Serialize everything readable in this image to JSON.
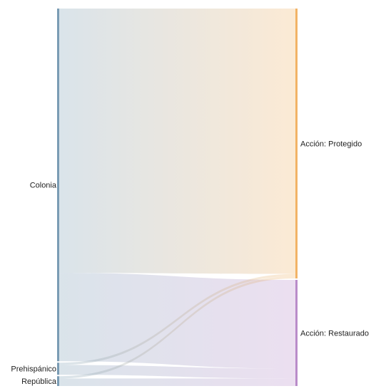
{
  "chart_data": {
    "type": "sankey",
    "title": "",
    "sources": [
      {
        "name": "Colonia",
        "color": "#7a9cb4"
      },
      {
        "name": "Prehispánico",
        "color": "#7a9cb4"
      },
      {
        "name": "República",
        "color": "#7a9cb4"
      }
    ],
    "targets": [
      {
        "name": "Acción: Protegido",
        "color": "#f2b366"
      },
      {
        "name": "Acción: Restaurado",
        "color": "#b98cc9"
      }
    ],
    "links": [
      {
        "source": "Colonia",
        "target": "Acción: Protegido",
        "value": 350
      },
      {
        "source": "Colonia",
        "target": "Acción: Restaurado",
        "value": 117
      },
      {
        "source": "Prehispánico",
        "target": "Acción: Protegido",
        "value": 3
      },
      {
        "source": "Prehispánico",
        "target": "Acción: Restaurado",
        "value": 13
      },
      {
        "source": "República",
        "target": "Acción: Protegido",
        "value": 3
      },
      {
        "source": "República",
        "target": "Acción: Restaurado",
        "value": 10
      }
    ]
  }
}
